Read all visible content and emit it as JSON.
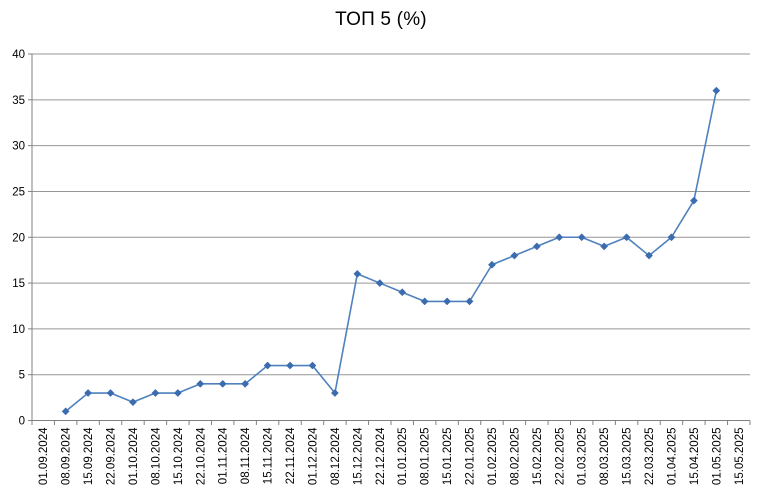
{
  "window": {
    "background_color": "#FFFFFF"
  },
  "chart_data": {
    "type": "line",
    "title": "ТОП 5 (%)",
    "xlabel": "",
    "ylabel": "",
    "ylim": [
      0,
      40
    ],
    "ytick_step": 5,
    "grid": "horizontal-solid",
    "legend_position": "none",
    "x_label_rotation_deg": 90,
    "marker_shape": "diamond",
    "categories": [
      "01.09.2024",
      "08.09.2024",
      "15.09.2024",
      "22.09.2024",
      "01.10.2024",
      "08.10.2024",
      "15.10.2024",
      "22.10.2024",
      "01.11.2024",
      "08.11.2024",
      "15.11.2024",
      "22.11.2024",
      "01.12.2024",
      "08.12.2024",
      "15.12.2024",
      "22.12.2024",
      "01.01.2025",
      "08.01.2025",
      "15.01.2025",
      "22.01.2025",
      "01.02.2025",
      "08.02.2025",
      "15.02.2025",
      "22.02.2025",
      "01.03.2025",
      "08.03.2025",
      "15.03.2025",
      "22.03.2025",
      "01.04.2025",
      "15.04.2025",
      "01.05.2025",
      "15.05.2025"
    ],
    "series": [
      {
        "name": "ТОП 5",
        "values": [
          null,
          1,
          3,
          3,
          2,
          3,
          3,
          4,
          4,
          4,
          6,
          6,
          6,
          3,
          16,
          15,
          14,
          13,
          13,
          13,
          17,
          18,
          19,
          20,
          20,
          19,
          20,
          18,
          20,
          24,
          36,
          null
        ]
      }
    ],
    "colors": {
      "line": "#4E81BD",
      "marker": "#3C6CB0",
      "gridline": "#969696",
      "axis": "#808080",
      "tick": "#808080",
      "label_text": "#000000",
      "title_text": "#000000"
    }
  }
}
